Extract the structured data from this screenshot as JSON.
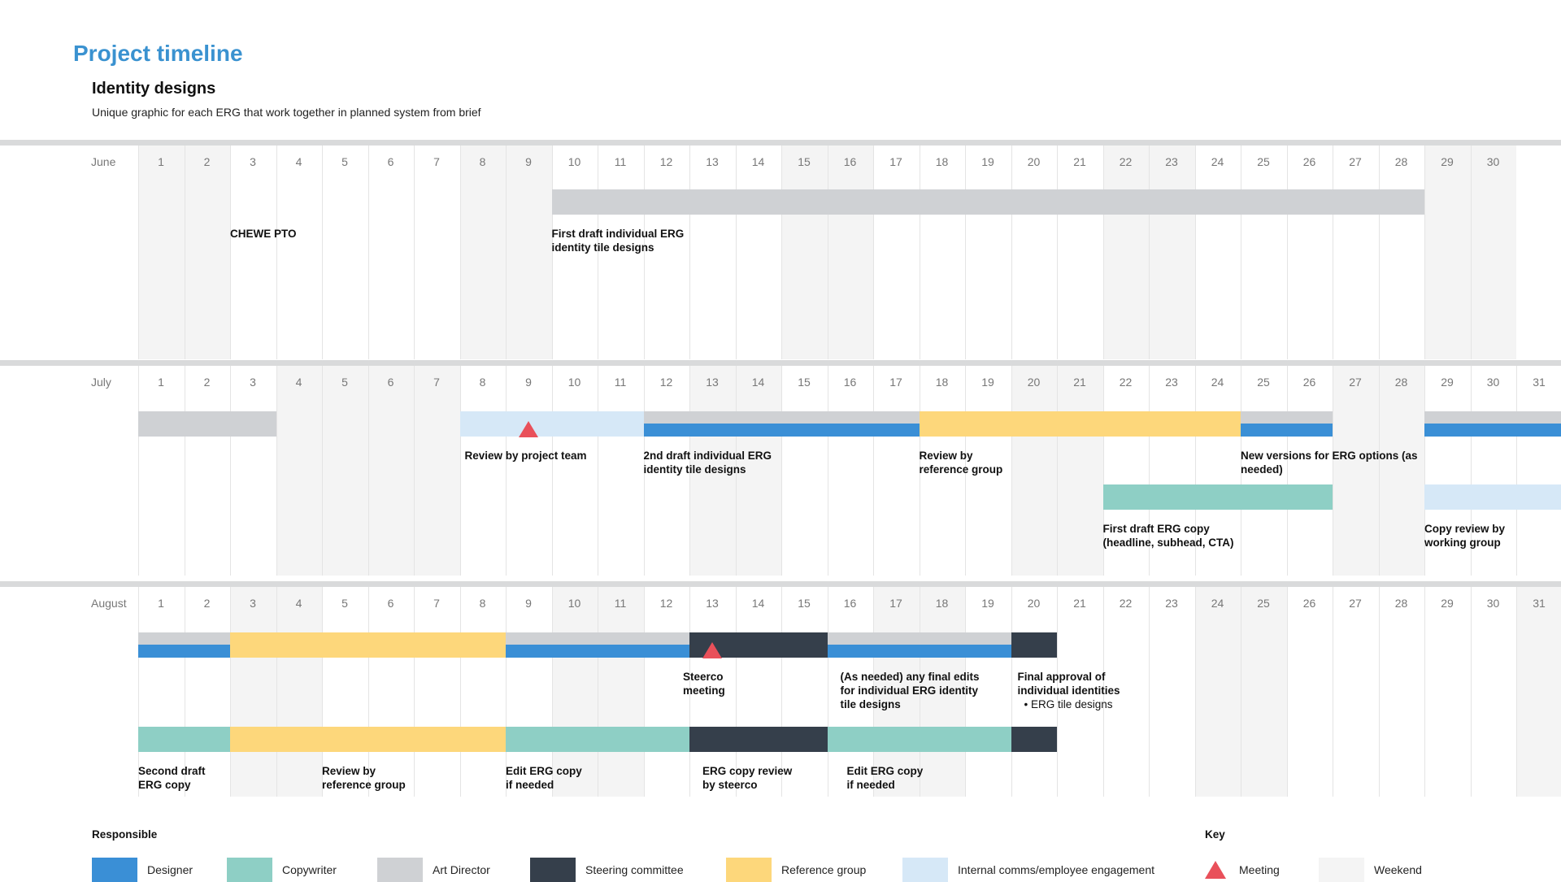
{
  "header": {
    "title": "Project timeline",
    "subtitle": "Identity designs",
    "description": "Unique graphic for each ERG that work together in planned system from brief"
  },
  "colors": {
    "designer": "#3a8fd6",
    "copywriter": "#8ecfc5",
    "art_director": "#cfd1d4",
    "steering": "#353f4b",
    "reference": "#fdd77b",
    "internal": "#d6e8f7",
    "meeting": "#e9505a",
    "weekend": "#f4f4f4"
  },
  "months": [
    {
      "name": "June",
      "days": 30,
      "weekends": [
        1,
        2,
        8,
        9,
        15,
        16,
        22,
        23,
        29,
        30
      ],
      "bars": [
        {
          "start": 10,
          "end": 29,
          "lane": 0,
          "color": "art_director"
        }
      ],
      "labels": [
        {
          "day": 3,
          "lane": 0,
          "text": "CHEWE PTO"
        },
        {
          "day": 10,
          "lane": 0,
          "text": "First draft individual ERG\nidentity tile designs"
        }
      ],
      "meetings": []
    },
    {
      "name": "July",
      "days": 31,
      "weekends": [
        4,
        5,
        6,
        7,
        13,
        14,
        20,
        21,
        27,
        28
      ],
      "bars": [
        {
          "start": 1,
          "end": 4,
          "lane": 0,
          "color": "art_director"
        },
        {
          "start": 8,
          "end": 12,
          "lane": 0,
          "color": "internal"
        },
        {
          "start": 12,
          "end": 18,
          "lane": 0,
          "color": "art_director",
          "under": "designer"
        },
        {
          "start": 18,
          "end": 25,
          "lane": 0,
          "color": "reference"
        },
        {
          "start": 25,
          "end": 27,
          "lane": 0,
          "color": "art_director",
          "under": "designer"
        },
        {
          "start": 29,
          "end": 32,
          "lane": 0,
          "color": "art_director",
          "under": "designer"
        },
        {
          "start": 22,
          "end": 27,
          "lane": 1,
          "color": "copywriter"
        },
        {
          "start": 29,
          "end": 32,
          "lane": 1,
          "color": "internal"
        }
      ],
      "labels": [
        {
          "day": 8,
          "lane": 0,
          "text": "Review by project team",
          "offset": 6
        },
        {
          "day": 12,
          "lane": 0,
          "text": "2nd draft individual ERG\nidentity tile designs"
        },
        {
          "day": 18,
          "lane": 0,
          "text": "Review by\nreference group"
        },
        {
          "day": 25,
          "lane": 0,
          "text": "New versions for ERG options (as\nneeded)"
        },
        {
          "day": 22,
          "lane": 1,
          "text": "First draft ERG copy\n(headline, subhead, CTA)"
        },
        {
          "day": 29,
          "lane": 1,
          "text": "Copy review by\nworking group"
        }
      ],
      "meetings": [
        {
          "day": 9,
          "lane": 0
        }
      ]
    },
    {
      "name": "August",
      "days": 31,
      "weekends": [
        3,
        4,
        10,
        11,
        17,
        18,
        24,
        25,
        31
      ],
      "bars": [
        {
          "start": 1,
          "end": 3,
          "lane": 0,
          "color": "art_director",
          "under": "designer"
        },
        {
          "start": 3,
          "end": 9,
          "lane": 0,
          "color": "reference"
        },
        {
          "start": 9,
          "end": 13,
          "lane": 0,
          "color": "art_director",
          "under": "designer"
        },
        {
          "start": 13,
          "end": 16,
          "lane": 0,
          "color": "steering"
        },
        {
          "start": 16,
          "end": 20,
          "lane": 0,
          "color": "art_director",
          "under": "designer"
        },
        {
          "start": 20,
          "end": 21,
          "lane": 0,
          "color": "steering"
        },
        {
          "start": 1,
          "end": 3,
          "lane": 1,
          "color": "copywriter"
        },
        {
          "start": 3,
          "end": 9,
          "lane": 1,
          "color": "reference"
        },
        {
          "start": 9,
          "end": 13,
          "lane": 1,
          "color": "copywriter"
        },
        {
          "start": 13,
          "end": 16,
          "lane": 1,
          "color": "steering"
        },
        {
          "start": 16,
          "end": 20,
          "lane": 1,
          "color": "copywriter"
        },
        {
          "start": 20,
          "end": 21,
          "lane": 1,
          "color": "steering"
        }
      ],
      "labels": [
        {
          "day": 13,
          "lane": 0,
          "text": "Steerco\nmeeting",
          "offset": -8
        },
        {
          "day": 16,
          "lane": 0,
          "text": "(As needed) any final edits\nfor individual ERG identity\ntile designs",
          "offset": 16
        },
        {
          "day": 20,
          "lane": 0,
          "text": "Final approval of\nindividual identities",
          "sub": "• ERG tile designs",
          "offset": 8
        },
        {
          "day": 1,
          "lane": 1,
          "text": "Second draft\nERG copy"
        },
        {
          "day": 5,
          "lane": 1,
          "text": "Review by\nreference group"
        },
        {
          "day": 9,
          "lane": 1,
          "text": "Edit ERG copy\nif needed"
        },
        {
          "day": 13,
          "lane": 1,
          "text": "ERG copy review\nby steerco",
          "offset": 16
        },
        {
          "day": 16,
          "lane": 1,
          "text": "Edit ERG copy\nif needed",
          "offset": 24
        }
      ],
      "meetings": [
        {
          "day": 13,
          "lane": 0
        }
      ]
    }
  ],
  "legend": {
    "responsible_heading": "Responsible",
    "key_heading": "Key",
    "responsible": [
      {
        "label": "Designer",
        "color": "designer"
      },
      {
        "label": "Copywriter",
        "color": "copywriter"
      },
      {
        "label": "Art Director",
        "color": "art_director"
      },
      {
        "label": "Steering committee",
        "color": "steering"
      },
      {
        "label": "Reference group",
        "color": "reference"
      },
      {
        "label": "Internal comms/employee engagement",
        "color": "internal"
      }
    ],
    "key": [
      {
        "label": "Meeting",
        "icon": "meeting-triangle-icon"
      },
      {
        "label": "Weekend",
        "icon": "weekend-swatch-icon"
      }
    ]
  }
}
